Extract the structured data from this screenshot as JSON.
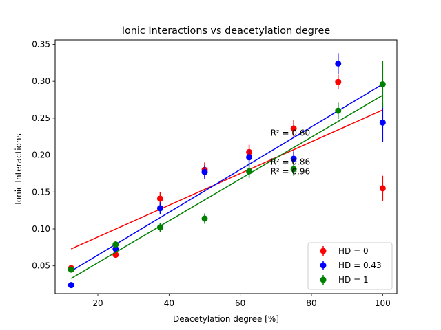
{
  "chart_data": {
    "type": "scatter",
    "title": "Ionic Interactions vs deacetylation degree",
    "xlabel": "Deacetylation degree [%]",
    "ylabel": "Ionic Interactions",
    "xlim": [
      8,
      104
    ],
    "ylim": [
      0.0125,
      0.356
    ],
    "xticks": [
      "20",
      "40",
      "60",
      "80",
      "100"
    ],
    "yticks": [
      "0.05",
      "0.10",
      "0.15",
      "0.20",
      "0.25",
      "0.30",
      "0.35"
    ],
    "legend_position": "bottom-right",
    "grid": false,
    "series": [
      {
        "name": "HD = 0",
        "color": "#ff0000",
        "x": [
          12.5,
          25,
          37.5,
          50,
          62.5,
          75,
          87.5,
          100
        ],
        "y": [
          0.047,
          0.065,
          0.141,
          0.18,
          0.204,
          0.236,
          0.299,
          0.155
        ],
        "err": [
          0.003,
          0.004,
          0.009,
          0.01,
          0.01,
          0.011,
          0.01,
          0.017
        ],
        "fit": [
          0.073,
          0.261
        ],
        "r2_label": "R² = 0.60",
        "r2_pos": [
          68.5,
          0.226
        ]
      },
      {
        "name": "HD = 0.43",
        "color": "#0000ff",
        "x": [
          12.5,
          25,
          37.5,
          50,
          62.5,
          75,
          87.5,
          100
        ],
        "y": [
          0.024,
          0.073,
          0.128,
          0.177,
          0.197,
          0.195,
          0.324,
          0.244
        ],
        "err": [
          0.002,
          0.004,
          0.008,
          0.009,
          0.01,
          0.01,
          0.014,
          0.026
        ],
        "fit": [
          0.043,
          0.296
        ],
        "r2_label": "R² = 0.86",
        "r2_pos": [
          68.5,
          0.187
        ]
      },
      {
        "name": "HD = 1",
        "color": "#008000",
        "x": [
          12.5,
          25,
          37.5,
          50,
          62.5,
          75,
          87.5,
          100
        ],
        "y": [
          0.045,
          0.079,
          0.102,
          0.114,
          0.178,
          0.181,
          0.26,
          0.296
        ],
        "err": [
          0.003,
          0.005,
          0.006,
          0.007,
          0.009,
          0.009,
          0.011,
          0.032
        ],
        "fit": [
          0.033,
          0.281
        ],
        "r2_label": "R² = 0.96",
        "r2_pos": [
          68.5,
          0.174
        ]
      }
    ]
  }
}
